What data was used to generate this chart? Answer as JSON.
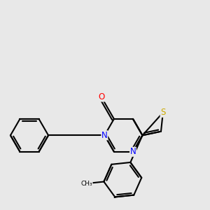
{
  "background_color": "#e8e8e8",
  "bond_color": "#000000",
  "atom_colors": {
    "N": "#0000ff",
    "O": "#ff0000",
    "S": "#ccaa00",
    "C": "#000000"
  },
  "bond_width": 1.5,
  "font_size_atom": 8.5,
  "figsize": [
    3.0,
    3.0
  ],
  "dpi": 100,
  "xlim": [
    -4.5,
    4.5
  ],
  "ylim": [
    -4.0,
    4.5
  ]
}
